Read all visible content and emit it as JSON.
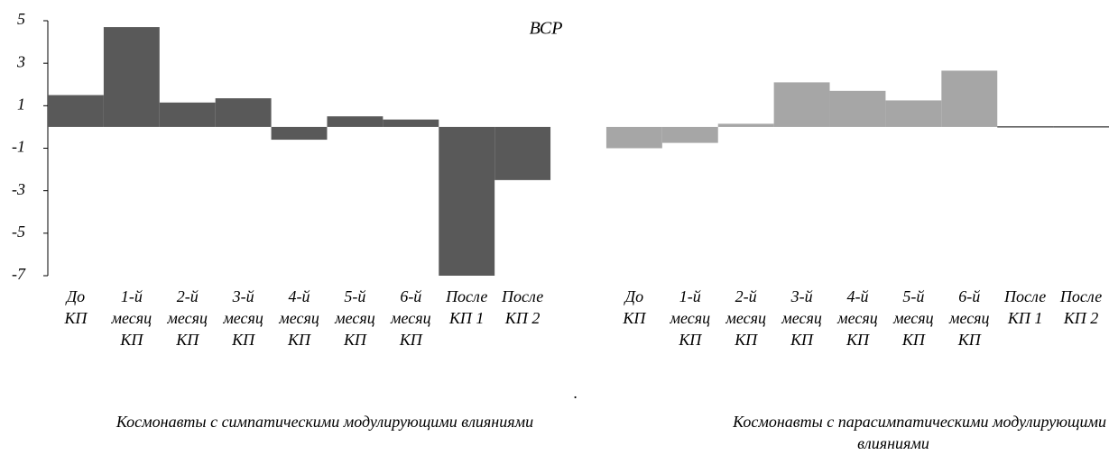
{
  "chart_data": {
    "type": "bar",
    "title": "ВСР",
    "categories": [
      "До КП",
      "1-й месяц КП",
      "2-й месяц КП",
      "3-й месяц КП",
      "4-й месяц КП",
      "5-й месяц КП",
      "6-й месяц КП",
      "После КП 1",
      "После КП 2",
      null,
      "До КП",
      "1-й месяц КП",
      "2-й месяц КП",
      "3-й месяц КП",
      "4-й месяц КП",
      "5-й месяц КП",
      "6-й месяц КП",
      "После КП 1",
      "После КП 2"
    ],
    "series": [
      {
        "name": "Космонавты с симпатическими модулирующими влияниями",
        "color": "#595959",
        "values": [
          1.5,
          4.7,
          1.15,
          1.35,
          -0.6,
          0.5,
          0.35,
          -7.0,
          -2.5,
          null,
          null,
          null,
          null,
          null,
          null,
          null,
          null,
          null,
          null
        ]
      },
      {
        "name": "Космонавты с парасимпатическими модулирующими влияниями",
        "color": "#a6a6a6",
        "values": [
          null,
          null,
          null,
          null,
          null,
          null,
          null,
          null,
          null,
          null,
          -1.0,
          -0.75,
          0.15,
          2.1,
          1.7,
          1.25,
          2.65,
          0,
          0
        ]
      }
    ],
    "annotation": ".",
    "ylim": [
      -7,
      5
    ],
    "yticks": [
      -7,
      -5,
      -3,
      -1,
      1,
      3,
      5
    ]
  }
}
